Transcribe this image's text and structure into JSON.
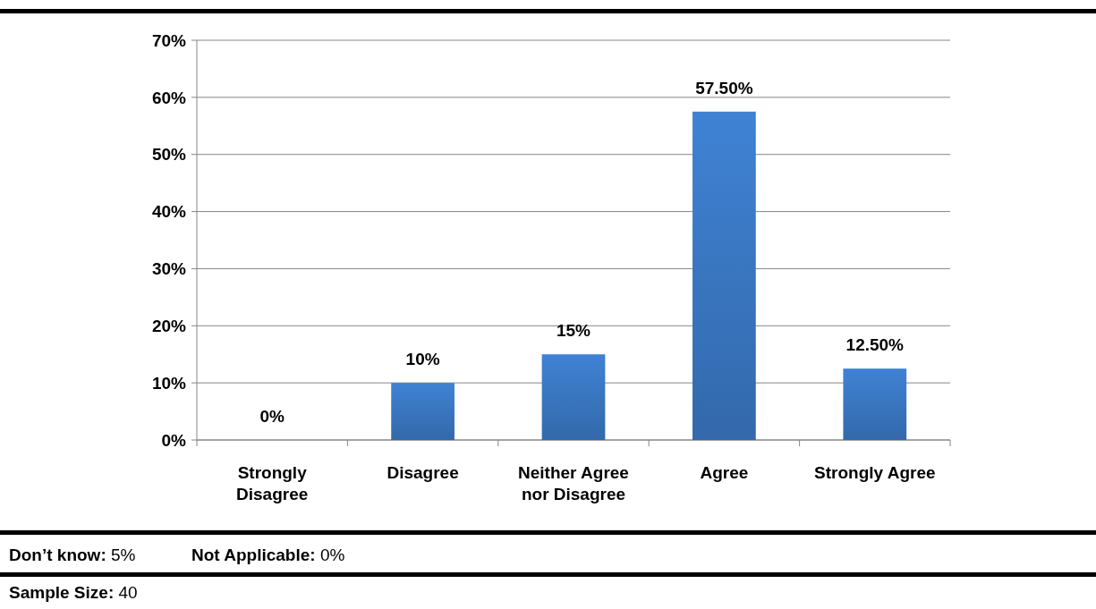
{
  "chart_data": {
    "type": "bar",
    "categories": [
      "Strongly Disagree",
      "Disagree",
      "Neither Agree nor Disagree",
      "Agree",
      "Strongly Agree"
    ],
    "values": [
      0,
      10,
      15,
      57.5,
      12.5
    ],
    "value_labels": [
      "0%",
      "10%",
      "15%",
      "57.50%",
      "12.50%"
    ],
    "color": "#3a77c2",
    "ylim": [
      0,
      70
    ],
    "yticks": [
      {
        "value": 0,
        "label": "0%"
      },
      {
        "value": 10,
        "label": "10%"
      },
      {
        "value": 20,
        "label": "20%"
      },
      {
        "value": 30,
        "label": "30%"
      },
      {
        "value": 40,
        "label": "40%"
      },
      {
        "value": 50,
        "label": "50%"
      },
      {
        "value": 60,
        "label": "60%"
      },
      {
        "value": 70,
        "label": "70%"
      }
    ],
    "grid": "y",
    "annotations": [
      "Don’t know: 5%",
      "Not Applicable: 0%",
      "Sample Size: 40"
    ]
  }
}
